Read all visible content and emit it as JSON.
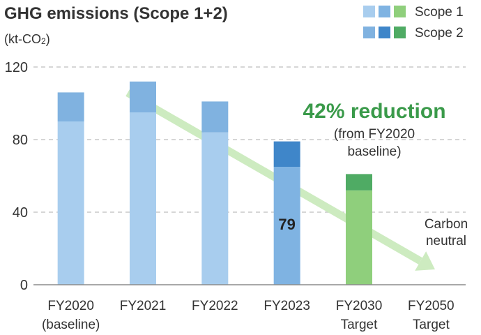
{
  "chart_data": {
    "type": "bar",
    "stacked": true,
    "title": "GHG emissions (Scope 1+2)",
    "unit": "(kt-CO",
    "unit_sub": "2",
    "unit_close": ")",
    "ylim": [
      0,
      120
    ],
    "yticks": [
      0,
      40,
      80,
      120
    ],
    "grid": true,
    "legend_position": "top-right",
    "categories": [
      {
        "line1": "FY2020",
        "line2": "(baseline)"
      },
      {
        "line1": "FY2021",
        "line2": ""
      },
      {
        "line1": "FY2022",
        "line2": ""
      },
      {
        "line1": "FY2023",
        "line2": ""
      },
      {
        "line1": "FY2030",
        "line2": "Target"
      },
      {
        "line1": "FY2050",
        "line2": "Target"
      }
    ],
    "series": [
      {
        "name": "Scope 1",
        "values": [
          90,
          95,
          84,
          65,
          52,
          null
        ],
        "colors": [
          "#a8cdee",
          "#a8cdee",
          "#a8cdee",
          "#7fb3e2",
          "#8fcf7c",
          null
        ]
      },
      {
        "name": "Scope 2",
        "values": [
          16,
          17,
          17,
          14,
          9,
          null
        ],
        "colors": [
          "#80b2e0",
          "#80b2e0",
          "#80b2e0",
          "#3f86c9",
          "#4fab64",
          null
        ]
      }
    ],
    "legend": [
      {
        "label": "Scope 1",
        "swatches": [
          "#a8cdee",
          "#7fb3e2",
          "#8fcf7c"
        ]
      },
      {
        "label": "Scope 2",
        "swatches": [
          "#80b2e0",
          "#3f86c9",
          "#4fab64"
        ]
      }
    ],
    "data_labels": [
      {
        "category_index": 3,
        "text": "79"
      }
    ],
    "annotations": {
      "reduction": "42% reduction",
      "reduction_note_1": "(from FY2020",
      "reduction_note_2": "baseline)",
      "carbon_1": "Carbon",
      "carbon_2": "neutral"
    },
    "trend_arrow_color": "#cdebc0"
  }
}
